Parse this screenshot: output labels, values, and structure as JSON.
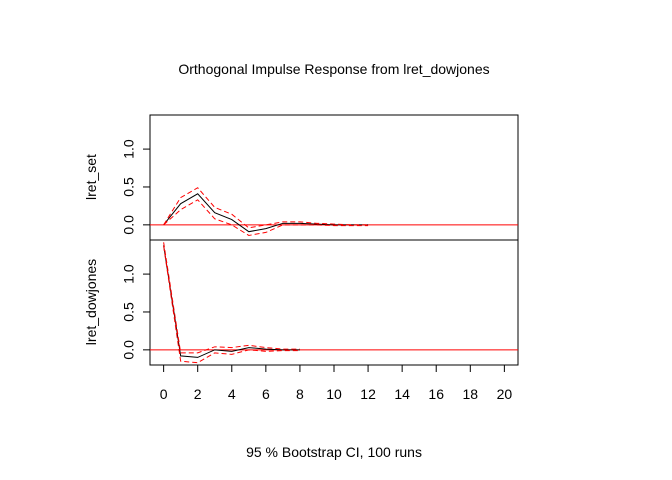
{
  "chart_data": {
    "type": "line",
    "title": "Orthogonal Impulse Response from lret_dowjones",
    "xlabel": "95 % Bootstrap CI,  100 runs",
    "x_ticks": [
      "0",
      "2",
      "4",
      "6",
      "8",
      "10",
      "12",
      "14",
      "16",
      "18",
      "20"
    ],
    "xlim": [
      -0.8,
      20.8
    ],
    "colors": {
      "response": "#000000",
      "ci": "#ff0000",
      "zero_line": "#ff0000"
    },
    "panels": [
      {
        "ylabel": "lret_set",
        "ylim": [
          -0.2,
          1.45
        ],
        "y_ticks": [
          "0.0",
          "0.5",
          "1.0"
        ],
        "x": [
          0,
          1,
          2,
          3,
          4,
          5,
          6,
          7,
          8,
          9,
          10,
          11,
          12
        ],
        "series": [
          {
            "role": "response",
            "values": [
              0.0,
              0.28,
              0.41,
              0.16,
              0.07,
              -0.09,
              -0.05,
              0.02,
              0.02,
              0.01,
              0.0,
              0.0,
              0.0
            ]
          },
          {
            "role": "lower",
            "values": [
              0.0,
              0.2,
              0.33,
              0.08,
              0.0,
              -0.14,
              -0.1,
              0.0,
              0.0,
              0.0,
              -0.01,
              -0.01,
              -0.01
            ]
          },
          {
            "role": "upper",
            "values": [
              0.0,
              0.36,
              0.49,
              0.23,
              0.14,
              -0.04,
              0.0,
              0.04,
              0.04,
              0.02,
              0.01,
              0.0,
              0.0
            ]
          }
        ]
      },
      {
        "ylabel": "lret_dowjones",
        "ylim": [
          -0.2,
          1.45
        ],
        "y_ticks": [
          "0.0",
          "0.5",
          "1.0"
        ],
        "x": [
          0,
          1,
          2,
          3,
          4,
          5,
          6,
          7,
          8
        ],
        "series": [
          {
            "role": "response",
            "values": [
              1.38,
              -0.08,
              -0.1,
              0.0,
              -0.02,
              0.03,
              0.01,
              0.0,
              0.0
            ]
          },
          {
            "role": "lower",
            "values": [
              1.37,
              -0.15,
              -0.17,
              -0.04,
              -0.06,
              0.0,
              -0.02,
              -0.01,
              -0.01
            ]
          },
          {
            "role": "upper",
            "values": [
              1.42,
              -0.04,
              -0.04,
              0.04,
              0.03,
              0.06,
              0.03,
              0.01,
              0.01
            ]
          }
        ]
      }
    ]
  }
}
